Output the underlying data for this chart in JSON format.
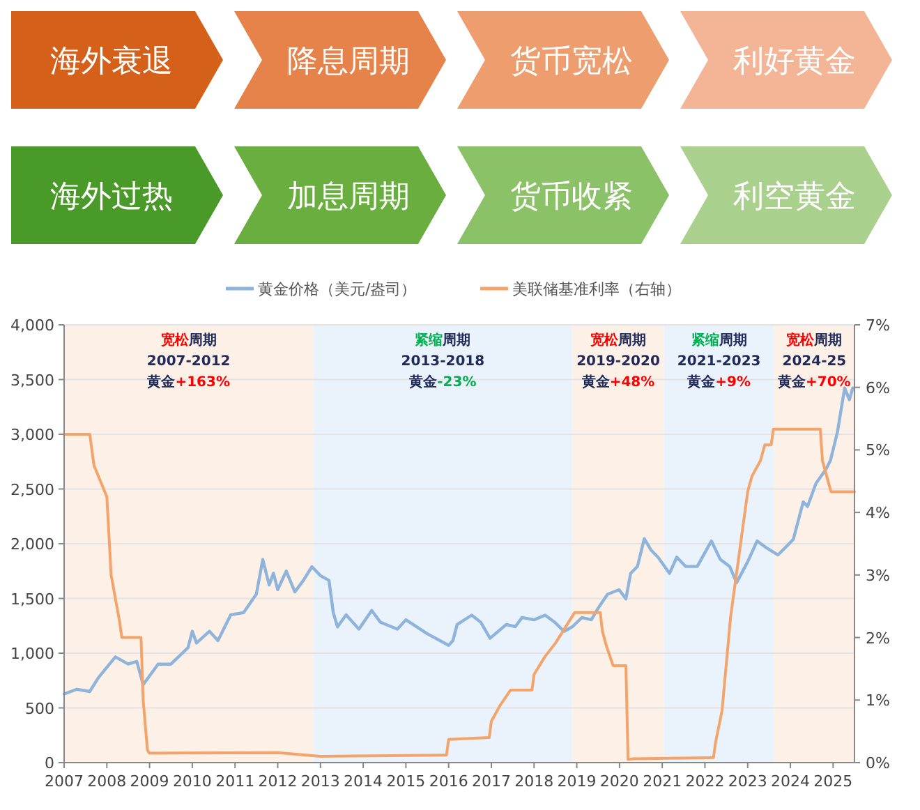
{
  "chart_data": {
    "type": "line",
    "annotations": [
      "海外衰退",
      "降息周期",
      "货币宽松",
      "利好黄金",
      "海外过热",
      "加息周期",
      "货币收紧",
      "利空黄金"
    ],
    "xlim": [
      2007,
      2025.5
    ],
    "xticks": [
      2007,
      2008,
      2009,
      2010,
      2011,
      2012,
      2013,
      2014,
      2015,
      2016,
      2017,
      2018,
      2019,
      2020,
      2021,
      2022,
      2023,
      2024,
      2025
    ],
    "ylim": [
      0,
      4000
    ],
    "yticks": [
      0,
      {
        "value": 500,
        "label": "500"
      },
      {
        "value": 1000,
        "label": "1,000"
      },
      {
        "value": 1500,
        "label": "1,500"
      },
      {
        "value": 2000,
        "label": "2,000"
      },
      {
        "value": 2500,
        "label": "2,500"
      },
      {
        "value": 3000,
        "label": "3,000"
      },
      {
        "value": 3500,
        "label": "3,500"
      },
      {
        "value": 4000,
        "label": "4,000"
      }
    ],
    "y2lim": [
      0,
      7
    ],
    "y2ticks": [
      {
        "value": 0,
        "label": "0%"
      },
      {
        "value": 1,
        "label": "1%"
      },
      {
        "value": 2,
        "label": "2%"
      },
      {
        "value": 3,
        "label": "3%"
      },
      {
        "value": 4,
        "label": "4%"
      },
      {
        "value": 5,
        "label": "5%"
      },
      {
        "value": 6,
        "label": "6%"
      },
      {
        "value": 7,
        "label": "7%"
      }
    ],
    "grid": "y",
    "legend": "top",
    "bands": [
      {
        "axis": "x",
        "from": 2007,
        "to": 2012.83,
        "color": "#fdf0e6",
        "label": "宽松周期\n2007-2012\n黄金+163%"
      },
      {
        "axis": "x",
        "from": 2012.83,
        "to": 2018.9,
        "color": "#eaf3fb",
        "label": "紧缩周期\n2013-2018\n黄金-23%"
      },
      {
        "axis": "x",
        "from": 2018.9,
        "to": 2021.04,
        "color": "#fdf0e6",
        "label": "宽松周期\n2019-2020\n黄金+48%"
      },
      {
        "axis": "x",
        "from": 2021.04,
        "to": 2023.62,
        "color": "#eaf3fb",
        "label": "紧缩周期\n2021-2023\n黄金+9%"
      },
      {
        "axis": "x",
        "from": 2023.62,
        "to": 2025.5,
        "color": "#fdf0e6",
        "label": "宽松周期\n2024-25\n黄金+70%"
      }
    ],
    "series": [
      {
        "name": "黄金价格（美元/盎司）",
        "color": "#8fb4dc",
        "x": [
          2007.0,
          2007.3,
          2007.6,
          2007.8,
          2008.2,
          2008.5,
          2008.7,
          2008.8,
          2008.85,
          2009.2,
          2009.5,
          2009.9,
          2010.0,
          2010.1,
          2010.4,
          2010.6,
          2010.9,
          2011.2,
          2011.5,
          2011.65,
          2011.8,
          2011.9,
          2012.0,
          2012.2,
          2012.4,
          2012.6,
          2012.8,
          2013.0,
          2013.2,
          2013.3,
          2013.4,
          2013.6,
          2013.9,
          2014.2,
          2014.4,
          2014.8,
          2015.0,
          2015.5,
          2016.0,
          2016.1,
          2016.2,
          2016.54,
          2016.75,
          2016.97,
          2017.35,
          2017.56,
          2017.72,
          2018.0,
          2018.26,
          2018.48,
          2018.7,
          2018.9,
          2019.12,
          2019.34,
          2019.5,
          2019.72,
          2019.99,
          2020.15,
          2020.26,
          2020.42,
          2020.58,
          2020.74,
          2020.9,
          2021.17,
          2021.34,
          2021.55,
          2021.82,
          2022.15,
          2022.36,
          2022.58,
          2022.74,
          2023.0,
          2023.22,
          2023.44,
          2023.71,
          2023.98,
          2024.07,
          2024.3,
          2024.4,
          2024.6,
          2024.83,
          2024.94,
          2025.1,
          2025.27,
          2025.38,
          2025.46
        ],
        "values": [
          627,
          670,
          650,
          775,
          966,
          900,
          925,
          784,
          712,
          900,
          900,
          1050,
          1200,
          1093,
          1200,
          1115,
          1350,
          1370,
          1540,
          1856,
          1623,
          1730,
          1580,
          1750,
          1560,
          1665,
          1790,
          1708,
          1665,
          1370,
          1240,
          1350,
          1220,
          1390,
          1284,
          1220,
          1305,
          1178,
          1072,
          1114,
          1262,
          1347,
          1284,
          1136,
          1262,
          1242,
          1326,
          1305,
          1347,
          1284,
          1199,
          1242,
          1326,
          1305,
          1411,
          1538,
          1580,
          1496,
          1729,
          1792,
          2047,
          1941,
          1877,
          1729,
          1877,
          1792,
          1792,
          2025,
          1856,
          1792,
          1644,
          1835,
          2025,
          1962,
          1898,
          2004,
          2042,
          2382,
          2340,
          2552,
          2679,
          2764,
          3019,
          3423,
          3316,
          3423
        ]
      },
      {
        "name": "美联储基准利率（右轴）",
        "color": "#f4a46a",
        "axis": "y2",
        "x": [
          2007.0,
          2007.6,
          2007.7,
          2007.85,
          2008.0,
          2008.1,
          2008.3,
          2008.35,
          2008.8,
          2008.85,
          2008.95,
          2009.0,
          2012.0,
          2013.0,
          2015.9,
          2015.95,
          2016.0,
          2016.95,
          2017.0,
          2017.2,
          2017.45,
          2017.95,
          2018.0,
          2018.25,
          2018.5,
          2018.95,
          2019.55,
          2019.6,
          2019.7,
          2019.85,
          2020.15,
          2020.2,
          2020.3,
          2022.2,
          2022.25,
          2022.4,
          2022.5,
          2022.6,
          2022.75,
          2022.9,
          2023.0,
          2023.1,
          2023.3,
          2023.4,
          2023.55,
          2023.6,
          2024.7,
          2024.75,
          2024.85,
          2024.95,
          2025.5
        ],
        "values": [
          5.25,
          5.25,
          4.75,
          4.5,
          4.25,
          3.0,
          2.25,
          2.0,
          2.0,
          1.0,
          0.2,
          0.15,
          0.16,
          0.1,
          0.12,
          0.12,
          0.37,
          0.4,
          0.66,
          0.91,
          1.16,
          1.16,
          1.41,
          1.69,
          1.91,
          2.4,
          2.4,
          2.1,
          1.85,
          1.55,
          1.55,
          0.05,
          0.06,
          0.08,
          0.33,
          0.83,
          1.58,
          2.33,
          3.08,
          3.83,
          4.33,
          4.58,
          4.83,
          5.08,
          5.08,
          5.33,
          5.33,
          4.83,
          4.58,
          4.33,
          4.33
        ]
      }
    ]
  }
}
